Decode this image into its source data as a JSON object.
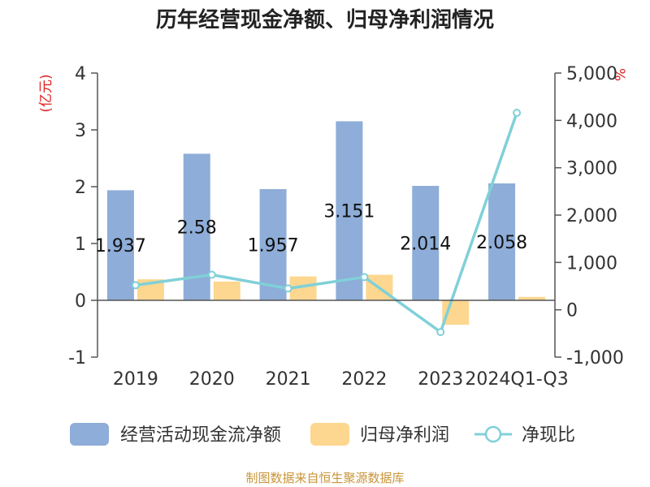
{
  "chart_data": {
    "type": "bar",
    "title": "历年经营现金净额、归母净利润情况",
    "categories": [
      "2019",
      "2020",
      "2021",
      "2022",
      "2023",
      "2024Q1-Q3"
    ],
    "series": [
      {
        "name": "经营活动现金流净额",
        "type": "bar",
        "axis": "left",
        "color": "#8eadd8",
        "values": [
          1.937,
          2.58,
          1.957,
          3.151,
          2.014,
          2.058
        ],
        "data_labels": [
          "1.937",
          "2.58",
          "1.957",
          "3.151",
          "2.014",
          "2.058"
        ]
      },
      {
        "name": "归母净利润",
        "type": "bar",
        "axis": "left",
        "color": "#fdd78f",
        "values": [
          0.37,
          0.33,
          0.42,
          0.45,
          -0.43,
          0.06
        ]
      },
      {
        "name": "净现比",
        "type": "line",
        "axis": "right",
        "color": "#80d0d8",
        "values": [
          520,
          740,
          450,
          690,
          -470,
          4160
        ]
      }
    ],
    "y_left": {
      "label": "(亿元)",
      "min": -1,
      "max": 4,
      "ticks": [
        "4",
        "3",
        "2",
        "1",
        "0",
        "-1"
      ]
    },
    "y_right": {
      "label": "%",
      "min": -1000,
      "max": 5000,
      "ticks": [
        "5,000",
        "4,000",
        "3,000",
        "2,000",
        "1,000",
        "0",
        "-1,000"
      ]
    },
    "legend_position": "bottom",
    "grid": false,
    "source": "制图数据来自恒生聚源数据库"
  }
}
